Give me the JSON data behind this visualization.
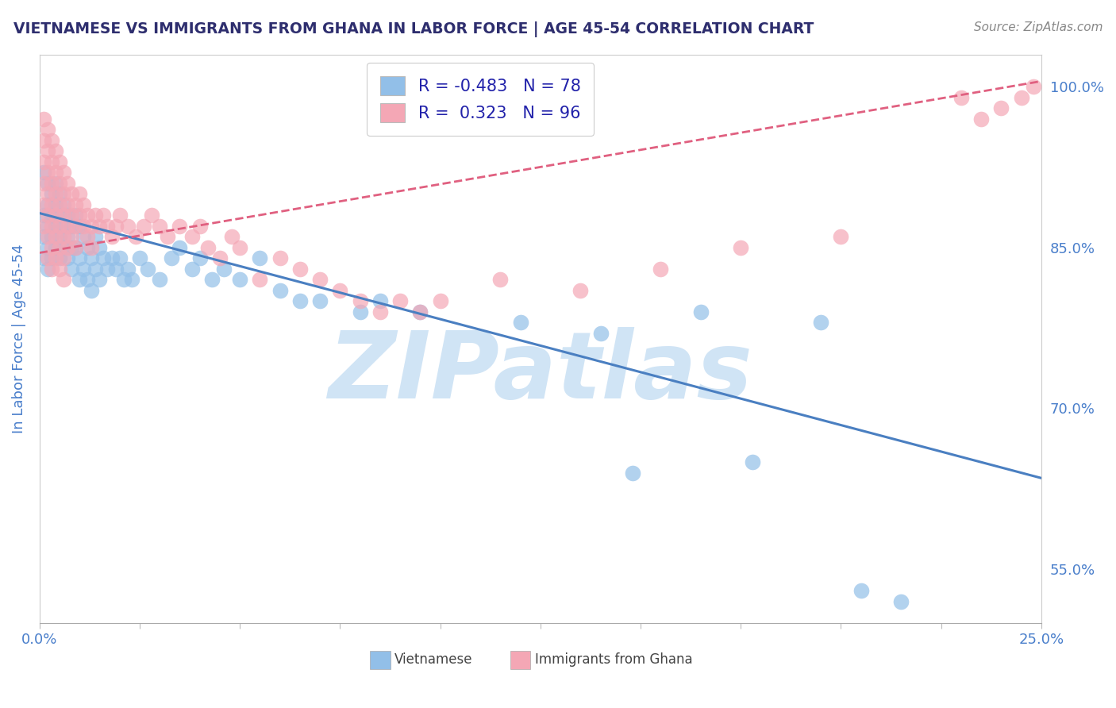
{
  "title": "VIETNAMESE VS IMMIGRANTS FROM GHANA IN LABOR FORCE | AGE 45-54 CORRELATION CHART",
  "source": "Source: ZipAtlas.com",
  "ylabel": "In Labor Force | Age 45-54",
  "xlim": [
    0.0,
    0.25
  ],
  "ylim": [
    0.5,
    1.03
  ],
  "xticks": [
    0.0,
    0.025,
    0.05,
    0.075,
    0.1,
    0.125,
    0.15,
    0.175,
    0.2,
    0.225,
    0.25
  ],
  "yticks": [
    0.55,
    0.7,
    0.85,
    1.0
  ],
  "ytick_labels": [
    "55.0%",
    "70.0%",
    "85.0%",
    "100.0%"
  ],
  "blue_R": -0.483,
  "blue_N": 78,
  "pink_R": 0.323,
  "pink_N": 96,
  "blue_color": "#92bfe8",
  "pink_color": "#f4a7b5",
  "blue_line_color": "#4a7fc1",
  "pink_line_color": "#e06080",
  "watermark": "ZIPatlas",
  "watermark_color": "#d0e4f5",
  "background_color": "#ffffff",
  "title_color": "#2e2e6e",
  "axis_label_color": "#4a7fcb",
  "legend_text_color": "#2222aa",
  "blue_scatter": [
    [
      0.001,
      0.88
    ],
    [
      0.001,
      0.86
    ],
    [
      0.001,
      0.84
    ],
    [
      0.001,
      0.92
    ],
    [
      0.002,
      0.91
    ],
    [
      0.002,
      0.89
    ],
    [
      0.002,
      0.87
    ],
    [
      0.002,
      0.85
    ],
    [
      0.002,
      0.83
    ],
    [
      0.003,
      0.9
    ],
    [
      0.003,
      0.88
    ],
    [
      0.003,
      0.86
    ],
    [
      0.003,
      0.84
    ],
    [
      0.004,
      0.91
    ],
    [
      0.004,
      0.89
    ],
    [
      0.004,
      0.87
    ],
    [
      0.004,
      0.85
    ],
    [
      0.005,
      0.9
    ],
    [
      0.005,
      0.88
    ],
    [
      0.005,
      0.86
    ],
    [
      0.005,
      0.84
    ],
    [
      0.006,
      0.89
    ],
    [
      0.006,
      0.87
    ],
    [
      0.006,
      0.85
    ],
    [
      0.007,
      0.88
    ],
    [
      0.007,
      0.86
    ],
    [
      0.007,
      0.84
    ],
    [
      0.008,
      0.87
    ],
    [
      0.008,
      0.85
    ],
    [
      0.008,
      0.83
    ],
    [
      0.009,
      0.88
    ],
    [
      0.009,
      0.85
    ],
    [
      0.01,
      0.87
    ],
    [
      0.01,
      0.84
    ],
    [
      0.01,
      0.82
    ],
    [
      0.011,
      0.86
    ],
    [
      0.011,
      0.83
    ],
    [
      0.012,
      0.85
    ],
    [
      0.012,
      0.82
    ],
    [
      0.013,
      0.84
    ],
    [
      0.013,
      0.81
    ],
    [
      0.014,
      0.86
    ],
    [
      0.014,
      0.83
    ],
    [
      0.015,
      0.85
    ],
    [
      0.015,
      0.82
    ],
    [
      0.016,
      0.84
    ],
    [
      0.017,
      0.83
    ],
    [
      0.018,
      0.84
    ],
    [
      0.019,
      0.83
    ],
    [
      0.02,
      0.84
    ],
    [
      0.021,
      0.82
    ],
    [
      0.022,
      0.83
    ],
    [
      0.023,
      0.82
    ],
    [
      0.025,
      0.84
    ],
    [
      0.027,
      0.83
    ],
    [
      0.03,
      0.82
    ],
    [
      0.033,
      0.84
    ],
    [
      0.035,
      0.85
    ],
    [
      0.038,
      0.83
    ],
    [
      0.04,
      0.84
    ],
    [
      0.043,
      0.82
    ],
    [
      0.046,
      0.83
    ],
    [
      0.05,
      0.82
    ],
    [
      0.055,
      0.84
    ],
    [
      0.06,
      0.81
    ],
    [
      0.065,
      0.8
    ],
    [
      0.07,
      0.8
    ],
    [
      0.08,
      0.79
    ],
    [
      0.085,
      0.8
    ],
    [
      0.095,
      0.79
    ],
    [
      0.12,
      0.78
    ],
    [
      0.14,
      0.77
    ],
    [
      0.165,
      0.79
    ],
    [
      0.195,
      0.78
    ],
    [
      0.148,
      0.64
    ],
    [
      0.178,
      0.65
    ],
    [
      0.205,
      0.53
    ],
    [
      0.215,
      0.52
    ]
  ],
  "pink_scatter": [
    [
      0.001,
      0.97
    ],
    [
      0.001,
      0.95
    ],
    [
      0.001,
      0.93
    ],
    [
      0.001,
      0.91
    ],
    [
      0.001,
      0.89
    ],
    [
      0.001,
      0.87
    ],
    [
      0.002,
      0.96
    ],
    [
      0.002,
      0.94
    ],
    [
      0.002,
      0.92
    ],
    [
      0.002,
      0.9
    ],
    [
      0.002,
      0.88
    ],
    [
      0.002,
      0.86
    ],
    [
      0.002,
      0.84
    ],
    [
      0.003,
      0.95
    ],
    [
      0.003,
      0.93
    ],
    [
      0.003,
      0.91
    ],
    [
      0.003,
      0.89
    ],
    [
      0.003,
      0.87
    ],
    [
      0.003,
      0.85
    ],
    [
      0.003,
      0.83
    ],
    [
      0.004,
      0.94
    ],
    [
      0.004,
      0.92
    ],
    [
      0.004,
      0.9
    ],
    [
      0.004,
      0.88
    ],
    [
      0.004,
      0.86
    ],
    [
      0.004,
      0.84
    ],
    [
      0.005,
      0.93
    ],
    [
      0.005,
      0.91
    ],
    [
      0.005,
      0.89
    ],
    [
      0.005,
      0.87
    ],
    [
      0.005,
      0.85
    ],
    [
      0.005,
      0.83
    ],
    [
      0.006,
      0.92
    ],
    [
      0.006,
      0.9
    ],
    [
      0.006,
      0.88
    ],
    [
      0.006,
      0.86
    ],
    [
      0.006,
      0.84
    ],
    [
      0.006,
      0.82
    ],
    [
      0.007,
      0.91
    ],
    [
      0.007,
      0.89
    ],
    [
      0.007,
      0.87
    ],
    [
      0.007,
      0.85
    ],
    [
      0.008,
      0.9
    ],
    [
      0.008,
      0.88
    ],
    [
      0.008,
      0.86
    ],
    [
      0.009,
      0.89
    ],
    [
      0.009,
      0.87
    ],
    [
      0.009,
      0.85
    ],
    [
      0.01,
      0.9
    ],
    [
      0.01,
      0.88
    ],
    [
      0.011,
      0.89
    ],
    [
      0.011,
      0.87
    ],
    [
      0.012,
      0.88
    ],
    [
      0.012,
      0.86
    ],
    [
      0.013,
      0.87
    ],
    [
      0.013,
      0.85
    ],
    [
      0.014,
      0.88
    ],
    [
      0.015,
      0.87
    ],
    [
      0.016,
      0.88
    ],
    [
      0.017,
      0.87
    ],
    [
      0.018,
      0.86
    ],
    [
      0.019,
      0.87
    ],
    [
      0.02,
      0.88
    ],
    [
      0.022,
      0.87
    ],
    [
      0.024,
      0.86
    ],
    [
      0.026,
      0.87
    ],
    [
      0.028,
      0.88
    ],
    [
      0.03,
      0.87
    ],
    [
      0.032,
      0.86
    ],
    [
      0.035,
      0.87
    ],
    [
      0.038,
      0.86
    ],
    [
      0.04,
      0.87
    ],
    [
      0.042,
      0.85
    ],
    [
      0.045,
      0.84
    ],
    [
      0.048,
      0.86
    ],
    [
      0.05,
      0.85
    ],
    [
      0.055,
      0.82
    ],
    [
      0.06,
      0.84
    ],
    [
      0.065,
      0.83
    ],
    [
      0.07,
      0.82
    ],
    [
      0.075,
      0.81
    ],
    [
      0.08,
      0.8
    ],
    [
      0.085,
      0.79
    ],
    [
      0.09,
      0.8
    ],
    [
      0.095,
      0.79
    ],
    [
      0.1,
      0.8
    ],
    [
      0.115,
      0.82
    ],
    [
      0.135,
      0.81
    ],
    [
      0.155,
      0.83
    ],
    [
      0.175,
      0.85
    ],
    [
      0.2,
      0.86
    ],
    [
      0.23,
      0.99
    ],
    [
      0.235,
      0.97
    ],
    [
      0.24,
      0.98
    ],
    [
      0.245,
      0.99
    ],
    [
      0.248,
      1.0
    ]
  ]
}
